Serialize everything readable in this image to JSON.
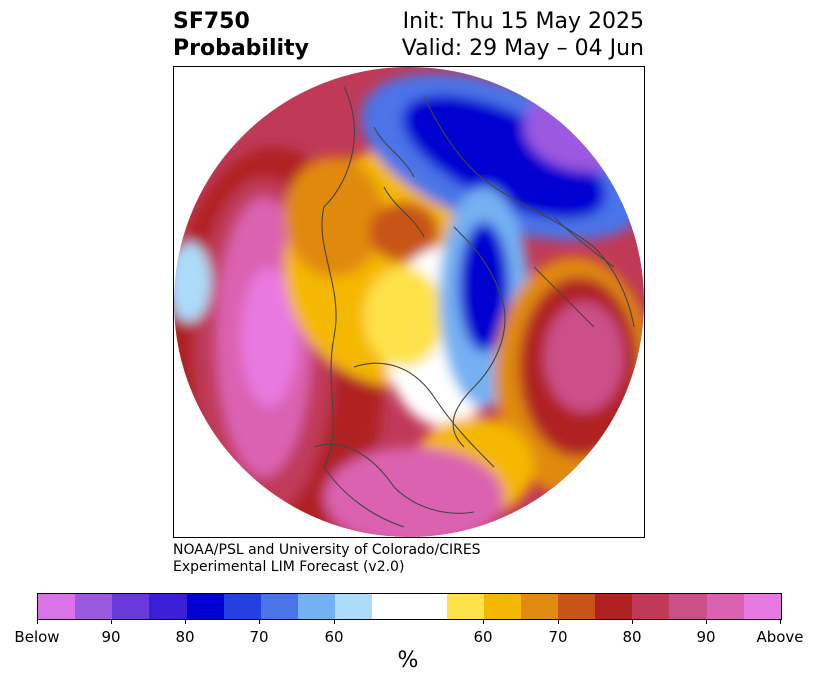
{
  "title": {
    "left_line1": "SF750",
    "left_line2": "Probability",
    "right_line1": "Init: Thu 15 May 2025",
    "right_line2": "Valid: 29 May – 04 Jun"
  },
  "credit": {
    "line1": "NOAA/PSL and University of Colorado/CIRES",
    "line2": "Experimental LIM Forecast (v2.0)"
  },
  "colorbar": {
    "colors": [
      "#d973e6",
      "#9b59e0",
      "#6a3ad8",
      "#3a1fd6",
      "#0000d0",
      "#2440de",
      "#4b74e8",
      "#74b1f2",
      "#acdcfa",
      "#ffffff",
      "#ffffff",
      "#ffe24a",
      "#f4b800",
      "#e08a10",
      "#c85518",
      "#b02222",
      "#c03a58",
      "#cc5088",
      "#da62b0",
      "#e879e0"
    ],
    "tick_labels": [
      "Below",
      "90",
      "80",
      "70",
      "60",
      "60",
      "70",
      "80",
      "90",
      "Above"
    ],
    "unit": "%"
  },
  "map": {
    "projection": "north-polar-stereographic",
    "anomaly_regions": [
      {
        "name": "north-pacific-high-anomaly",
        "sign": "above",
        "level": "90+"
      },
      {
        "name": "western-north-america-above",
        "sign": "above",
        "level": "60-80"
      },
      {
        "name": "eastern-siberia-below",
        "sign": "below",
        "level": "90+"
      },
      {
        "name": "north-atlantic-europe-above",
        "sign": "above",
        "level": "80-90"
      },
      {
        "name": "greenland-below",
        "sign": "below",
        "level": "80+"
      }
    ]
  }
}
